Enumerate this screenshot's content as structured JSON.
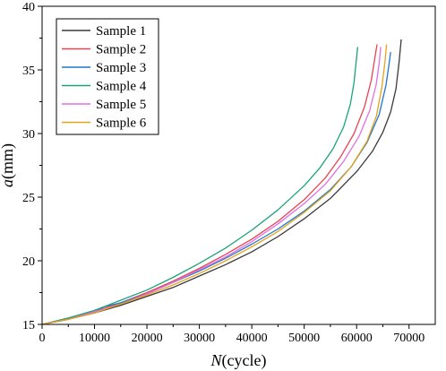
{
  "chart_data": {
    "type": "line",
    "xlabel": "N(cycle)",
    "ylabel": "a(mm)",
    "xlabel_var": "N",
    "xlabel_unit": "(cycle)",
    "ylabel_var": "a",
    "ylabel_unit": "(mm)",
    "xlim": [
      0,
      75000
    ],
    "ylim": [
      15,
      40
    ],
    "xticks": [
      0,
      10000,
      20000,
      30000,
      40000,
      50000,
      60000,
      70000
    ],
    "yticks": [
      15,
      20,
      25,
      30,
      35,
      40
    ],
    "grid": false,
    "legend_position": "top-left",
    "series": [
      {
        "name": "Sample 1",
        "color": "#3a3a3a",
        "points": [
          [
            0,
            15.0
          ],
          [
            5000,
            15.4
          ],
          [
            10000,
            15.9
          ],
          [
            15000,
            16.5
          ],
          [
            20000,
            17.2
          ],
          [
            25000,
            17.9
          ],
          [
            30000,
            18.8
          ],
          [
            35000,
            19.7
          ],
          [
            40000,
            20.7
          ],
          [
            45000,
            21.9
          ],
          [
            50000,
            23.3
          ],
          [
            55000,
            24.9
          ],
          [
            60000,
            27.0
          ],
          [
            63000,
            28.6
          ],
          [
            65000,
            30.1
          ],
          [
            66500,
            31.7
          ],
          [
            67500,
            33.5
          ],
          [
            68100,
            35.6
          ],
          [
            68500,
            37.4
          ]
        ]
      },
      {
        "name": "Sample 2",
        "color": "#e8434f",
        "points": [
          [
            0,
            15.0
          ],
          [
            5000,
            15.5
          ],
          [
            10000,
            16.0
          ],
          [
            15000,
            16.7
          ],
          [
            20000,
            17.5
          ],
          [
            25000,
            18.4
          ],
          [
            30000,
            19.4
          ],
          [
            35000,
            20.5
          ],
          [
            40000,
            21.7
          ],
          [
            45000,
            23.1
          ],
          [
            50000,
            24.8
          ],
          [
            54000,
            26.5
          ],
          [
            57000,
            28.2
          ],
          [
            59500,
            30.0
          ],
          [
            61500,
            32.1
          ],
          [
            62800,
            34.2
          ],
          [
            63500,
            36.0
          ],
          [
            63900,
            37.0
          ]
        ]
      },
      {
        "name": "Sample 3",
        "color": "#1f77d0",
        "points": [
          [
            0,
            15.0
          ],
          [
            5000,
            15.4
          ],
          [
            10000,
            16.0
          ],
          [
            12000,
            16.4
          ],
          [
            15000,
            16.7
          ],
          [
            20000,
            17.4
          ],
          [
            25000,
            18.3
          ],
          [
            30000,
            19.2
          ],
          [
            35000,
            20.2
          ],
          [
            40000,
            21.3
          ],
          [
            45000,
            22.5
          ],
          [
            50000,
            23.9
          ],
          [
            55000,
            25.6
          ],
          [
            59000,
            27.4
          ],
          [
            62000,
            29.3
          ],
          [
            64300,
            31.5
          ],
          [
            65600,
            33.8
          ],
          [
            66200,
            35.5
          ],
          [
            66500,
            36.4
          ]
        ]
      },
      {
        "name": "Sample 4",
        "color": "#1aa37a",
        "points": [
          [
            0,
            15.0
          ],
          [
            5000,
            15.5
          ],
          [
            10000,
            16.1
          ],
          [
            15000,
            16.9
          ],
          [
            20000,
            17.7
          ],
          [
            25000,
            18.7
          ],
          [
            30000,
            19.8
          ],
          [
            35000,
            21.0
          ],
          [
            40000,
            22.4
          ],
          [
            45000,
            24.0
          ],
          [
            50000,
            25.9
          ],
          [
            53000,
            27.3
          ],
          [
            55500,
            28.8
          ],
          [
            57500,
            30.5
          ],
          [
            58800,
            32.3
          ],
          [
            59500,
            34.0
          ],
          [
            59900,
            35.6
          ],
          [
            60200,
            36.8
          ]
        ]
      },
      {
        "name": "Sample 5",
        "color": "#e070e0",
        "points": [
          [
            0,
            15.0
          ],
          [
            5000,
            15.4
          ],
          [
            10000,
            16.0
          ],
          [
            15000,
            16.6
          ],
          [
            20000,
            17.4
          ],
          [
            25000,
            18.3
          ],
          [
            30000,
            19.3
          ],
          [
            35000,
            20.3
          ],
          [
            40000,
            21.5
          ],
          [
            45000,
            22.9
          ],
          [
            50000,
            24.5
          ],
          [
            54000,
            26.0
          ],
          [
            57500,
            27.8
          ],
          [
            60500,
            29.8
          ],
          [
            62500,
            31.8
          ],
          [
            63700,
            33.8
          ],
          [
            64300,
            35.5
          ],
          [
            64600,
            36.8
          ]
        ]
      },
      {
        "name": "Sample 6",
        "color": "#e3a21a",
        "points": [
          [
            0,
            15.0
          ],
          [
            5000,
            15.4
          ],
          [
            10000,
            15.9
          ],
          [
            15000,
            16.6
          ],
          [
            20000,
            17.3
          ],
          [
            25000,
            18.1
          ],
          [
            30000,
            19.0
          ],
          [
            35000,
            20.0
          ],
          [
            40000,
            21.1
          ],
          [
            45000,
            22.3
          ],
          [
            50000,
            23.8
          ],
          [
            55000,
            25.5
          ],
          [
            59000,
            27.4
          ],
          [
            62000,
            29.4
          ],
          [
            63800,
            31.4
          ],
          [
            64800,
            33.6
          ],
          [
            65400,
            35.6
          ],
          [
            65700,
            37.0
          ]
        ]
      }
    ]
  }
}
